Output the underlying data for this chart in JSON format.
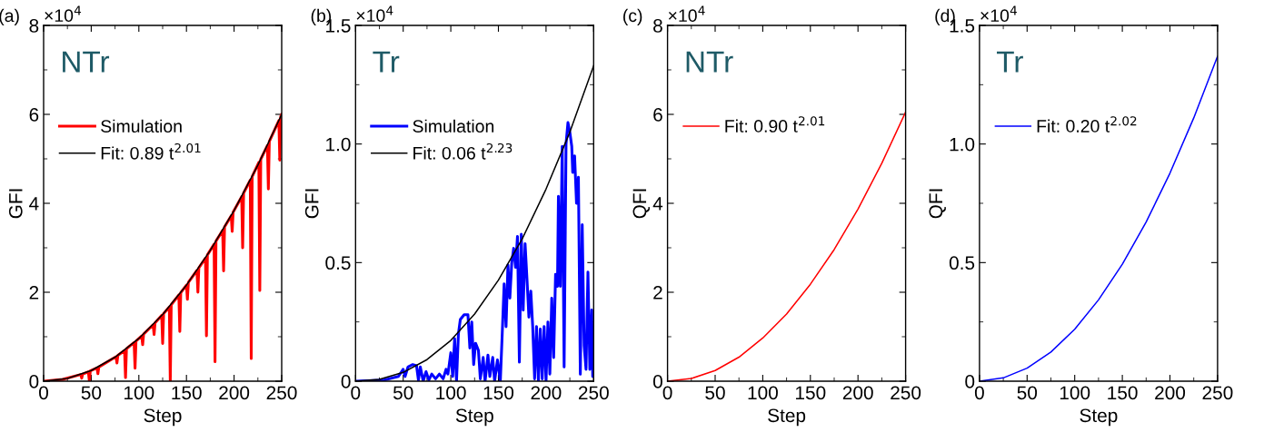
{
  "chart_data": [
    {
      "type": "line",
      "title": "NTr",
      "xlabel": "Step",
      "ylabel": "GFI",
      "annotations": [
        "(a)",
        "×10$^{4}$"
      ],
      "xlim": [
        0,
        250
      ],
      "xticks": [
        0,
        50,
        100,
        150,
        200,
        250
      ],
      "ylim": [
        0,
        8
      ],
      "yticks": [
        0,
        2,
        4,
        6,
        8
      ],
      "legend": "top left",
      "grid": false,
      "series": [
        {
          "name": "Simulation",
          "color": "#ff0000",
          "x": [
            0,
            20,
            39,
            40,
            41,
            47,
            48,
            49,
            56,
            57,
            58,
            76,
            77,
            78,
            85,
            86,
            87,
            95,
            96,
            97,
            103,
            104,
            105,
            115,
            116,
            117,
            124,
            125,
            126,
            132,
            133,
            134,
            142,
            143,
            144,
            150,
            151,
            152,
            161,
            162,
            163,
            170,
            171,
            172,
            179,
            180,
            181,
            188,
            189,
            190,
            197,
            198,
            199,
            208,
            209,
            210,
            217,
            218,
            219,
            226,
            227,
            228,
            235,
            236,
            237,
            247,
            248,
            249,
            250
          ],
          "values": [
            0,
            0.04,
            0.15,
            0.07,
            0.16,
            0.21,
            0.01,
            0.23,
            0.3,
            0.17,
            0.32,
            0.55,
            0.41,
            0.58,
            0.69,
            0.08,
            0.73,
            0.87,
            0.29,
            0.9,
            1.02,
            0.82,
            1.06,
            1.27,
            1.05,
            1.31,
            1.48,
            0.85,
            1.52,
            1.67,
            0,
            1.72,
            1.94,
            1.12,
            1.99,
            2.16,
            1.84,
            2.22,
            2.49,
            2.0,
            2.55,
            2.77,
            1.02,
            2.84,
            3.08,
            0.44,
            3.15,
            3.39,
            2.48,
            3.47,
            3.72,
            3.37,
            3.8,
            4.15,
            3.0,
            4.23,
            4.52,
            0.51,
            4.6,
            4.92,
            2.04,
            4.99,
            5.3,
            4.32,
            5.39,
            5.86,
            4.97,
            5.95,
            6.0
          ]
        },
        {
          "name": "Fit: 0.89 t$^{2.01}$",
          "color": "#000000",
          "x": [
            0,
            25,
            50,
            75,
            100,
            125,
            150,
            175,
            200,
            225,
            250
          ],
          "values": [
            0,
            0.06,
            0.24,
            0.54,
            0.96,
            1.5,
            2.16,
            2.94,
            3.84,
            4.86,
            6.0
          ]
        }
      ]
    },
    {
      "type": "line",
      "title": "Tr",
      "xlabel": "Step",
      "ylabel": "GFI",
      "annotations": [
        "(b)",
        "×10$^{4}$"
      ],
      "xlim": [
        0,
        250
      ],
      "xticks": [
        0,
        50,
        100,
        150,
        200,
        250
      ],
      "ylim": [
        0,
        1.5
      ],
      "yticks": [
        0,
        0.5,
        {
          "value": 1,
          "label": "1.0"
        },
        1.5
      ],
      "legend": "top left",
      "grid": false,
      "series": [
        {
          "name": "Simulation",
          "color": "#0000ff",
          "x": [
            0,
            30,
            45,
            50,
            52,
            55,
            60,
            64,
            66,
            68,
            71,
            74,
            77,
            80,
            84,
            88,
            92,
            95,
            97,
            100,
            102,
            104,
            106,
            108,
            110,
            114,
            118,
            120,
            122,
            124,
            126,
            129,
            131,
            134,
            136,
            139,
            141,
            144,
            146,
            149,
            152,
            154,
            156,
            158,
            160,
            162,
            164,
            166,
            168,
            170,
            172,
            174,
            176,
            178,
            180,
            182,
            184,
            186,
            188,
            190,
            192,
            194,
            196,
            198,
            200,
            202,
            204,
            206,
            208,
            210,
            212,
            213,
            215,
            217,
            219,
            221,
            223,
            225,
            227,
            228,
            230,
            232,
            234,
            236,
            238,
            240,
            242,
            244,
            246,
            248,
            249,
            250
          ],
          "values": [
            0,
            0.005,
            0.02,
            0.05,
            0.02,
            0.06,
            0.07,
            0.065,
            0.005,
            0.06,
            0.0,
            0.04,
            0.005,
            0.03,
            0.01,
            0.03,
            0.01,
            0.05,
            0.03,
            0.12,
            0.02,
            0.18,
            0.0,
            0.2,
            0.26,
            0.28,
            0.28,
            0.14,
            0.25,
            0.07,
            0.16,
            0.13,
            0.01,
            0.1,
            0.0,
            0.11,
            0.02,
            0.1,
            0.0,
            0.09,
            0.0,
            0.2,
            0.41,
            0.23,
            0.49,
            0.35,
            0.5,
            0.56,
            0.48,
            0.61,
            0.08,
            0.62,
            0.3,
            0.58,
            0.43,
            0.27,
            0.38,
            0.23,
            0.01,
            0.23,
            0.0,
            0.22,
            0.01,
            0.23,
            0.0,
            0.25,
            0.03,
            0.35,
            0.1,
            0.45,
            0.4,
            0.78,
            0.4,
            0.99,
            0.06,
            1.0,
            1.09,
            1.05,
            0.99,
            0.88,
            0.95,
            0.75,
            0.86,
            0.03,
            0.66,
            0.15,
            0.05,
            0.46,
            0.05,
            0.3,
            0.02,
            0.12
          ]
        },
        {
          "name": "Fit: 0.06 t$^{2.23}$",
          "color": "#000000",
          "x": [
            0,
            25,
            50,
            75,
            100,
            125,
            150,
            175,
            200,
            225,
            250
          ],
          "values": [
            0,
            0.008,
            0.037,
            0.091,
            0.172,
            0.283,
            0.426,
            0.6,
            0.81,
            1.05,
            1.33
          ]
        }
      ]
    },
    {
      "type": "line",
      "title": "NTr",
      "xlabel": "Step",
      "ylabel": "QFI",
      "annotations": [
        "(c)",
        "×10$^{4}$"
      ],
      "xlim": [
        0,
        250
      ],
      "xticks": [
        0,
        50,
        100,
        150,
        200,
        250
      ],
      "ylim": [
        0,
        8
      ],
      "yticks": [
        0,
        2,
        4,
        6,
        8
      ],
      "legend": "top left",
      "grid": false,
      "series": [
        {
          "name": "Fit: 0.90 t$^{2.01}$",
          "color": "#ff0000",
          "x": [
            0,
            25,
            50,
            75,
            100,
            125,
            150,
            175,
            200,
            225,
            250
          ],
          "values": [
            0,
            0.06,
            0.24,
            0.54,
            0.97,
            1.51,
            2.18,
            2.96,
            3.87,
            4.9,
            6.05
          ]
        }
      ]
    },
    {
      "type": "line",
      "title": "Tr",
      "xlabel": "Step",
      "ylabel": "QFI",
      "annotations": [
        "(d)",
        "×10$^{4}$"
      ],
      "xlim": [
        0,
        250
      ],
      "xticks": [
        0,
        50,
        100,
        150,
        200,
        250
      ],
      "ylim": [
        0,
        1.5
      ],
      "yticks": [
        0,
        0.5,
        {
          "value": 1,
          "label": "1.0"
        },
        1.5
      ],
      "legend": "top left",
      "grid": false,
      "series": [
        {
          "name": "Fit: 0.20 t$^{2.02}$",
          "color": "#0000ff",
          "x": [
            0,
            25,
            50,
            75,
            100,
            125,
            150,
            175,
            200,
            225,
            250
          ],
          "values": [
            0,
            0.014,
            0.055,
            0.123,
            0.219,
            0.343,
            0.493,
            0.671,
            0.877,
            1.11,
            1.37
          ]
        }
      ]
    }
  ]
}
